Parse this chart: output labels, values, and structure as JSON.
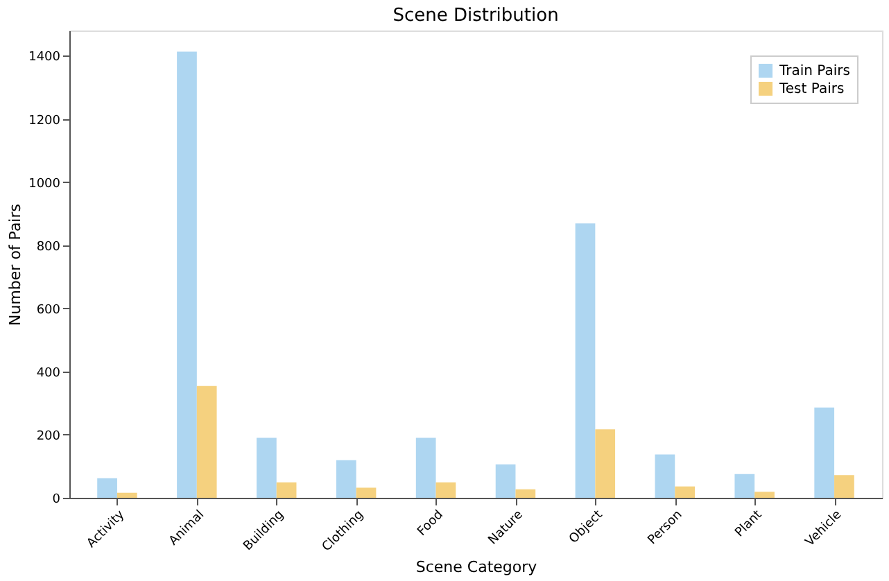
{
  "chart_data": {
    "type": "bar",
    "title": "Scene Distribution",
    "xlabel": "Scene Category",
    "ylabel": "Number of Pairs",
    "categories": [
      "Activity",
      "Animal",
      "Building",
      "Clothing",
      "Food",
      "Nature",
      "Object",
      "Person",
      "Plant",
      "Vehicle"
    ],
    "series": [
      {
        "name": "Train Pairs",
        "color": "#aed6f1",
        "values": [
          62,
          1413,
          190,
          119,
          190,
          106,
          869,
          137,
          75,
          286
        ]
      },
      {
        "name": "Test Pairs",
        "color": "#f5d17f",
        "values": [
          16,
          354,
          49,
          32,
          49,
          27,
          217,
          36,
          19,
          72
        ]
      }
    ],
    "ylim": [
      0,
      1480
    ],
    "yticks": [
      0,
      200,
      400,
      600,
      800,
      1000,
      1200,
      1400
    ],
    "grid": false,
    "legend": "top right"
  }
}
